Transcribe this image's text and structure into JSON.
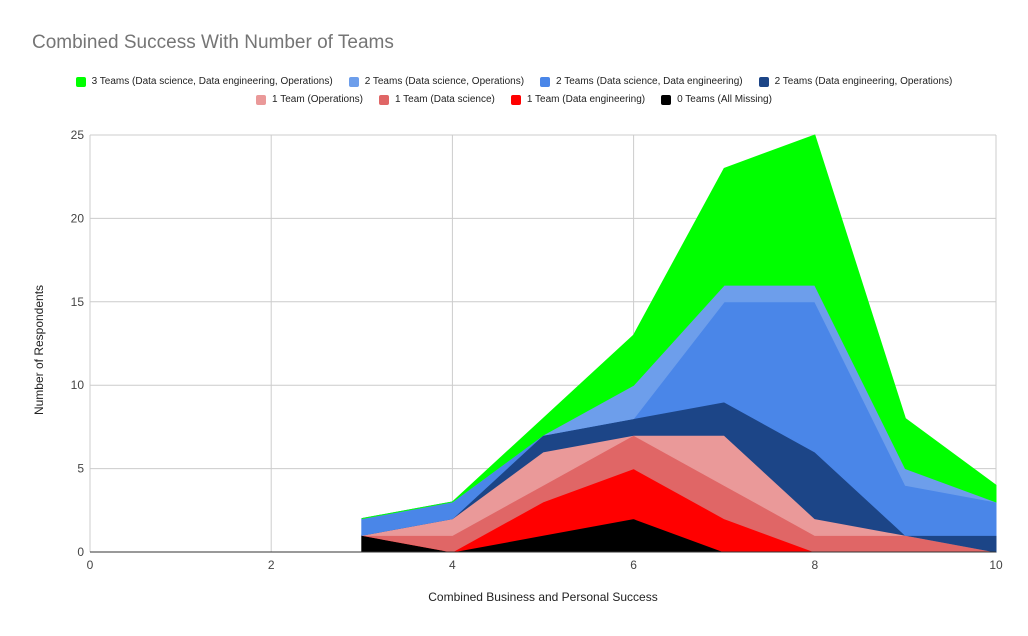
{
  "chart_data": {
    "type": "area",
    "stacked": true,
    "title": "Combined Success With Number of Teams",
    "xlabel": "Combined Business and Personal Success",
    "ylabel": "Number of Respondents",
    "xlim": [
      0,
      10
    ],
    "ylim": [
      0,
      25
    ],
    "xticks": [
      0,
      2,
      4,
      6,
      8,
      10
    ],
    "yticks": [
      0,
      5,
      10,
      15,
      20,
      25
    ],
    "grid": true,
    "legend_position": "top",
    "x": [
      3,
      4,
      5,
      6,
      7,
      8,
      9,
      10
    ],
    "series": [
      {
        "name": "0 Teams (All Missing)",
        "color": "#000000",
        "values": [
          1,
          0,
          1,
          2,
          0,
          0,
          0,
          0
        ]
      },
      {
        "name": "1 Team (Data engineering)",
        "color": "#ff0000",
        "values": [
          0,
          0,
          2,
          3,
          2,
          0,
          0,
          0
        ]
      },
      {
        "name": "1 Team (Data science)",
        "color": "#e06666",
        "values": [
          0,
          1,
          1,
          2,
          2,
          1,
          1,
          0
        ]
      },
      {
        "name": "1 Team (Operations)",
        "color": "#ea9999",
        "values": [
          0,
          1,
          2,
          0,
          3,
          1,
          0,
          0
        ]
      },
      {
        "name": "2 Teams (Data engineering, Operations)",
        "color": "#1c4587",
        "values": [
          0,
          0,
          1,
          1,
          2,
          4,
          0,
          1
        ]
      },
      {
        "name": "2 Teams (Data science, Data engineering)",
        "color": "#4a86e8",
        "values": [
          1,
          1,
          0,
          0,
          6,
          9,
          3,
          2
        ]
      },
      {
        "name": "2 Teams (Data science, Operations)",
        "color": "#6d9eeb",
        "values": [
          0,
          0,
          0,
          2,
          1,
          1,
          1,
          0
        ]
      },
      {
        "name": "3 Teams (Data science, Data engineering, Operations)",
        "color": "#00ff00",
        "values": [
          0,
          0,
          1,
          3,
          7,
          9,
          3,
          1
        ]
      }
    ],
    "legend_rows": [
      [
        "3 Teams (Data science, Data engineering, Operations)",
        "2 Teams (Data science, Operations)",
        "2 Teams (Data science, Data engineering)",
        "2 Teams (Data engineering, Operations)"
      ],
      [
        "1 Team (Operations)",
        "1 Team (Data science)",
        "1 Team (Data engineering)",
        "0 Teams (All Missing)"
      ]
    ]
  }
}
